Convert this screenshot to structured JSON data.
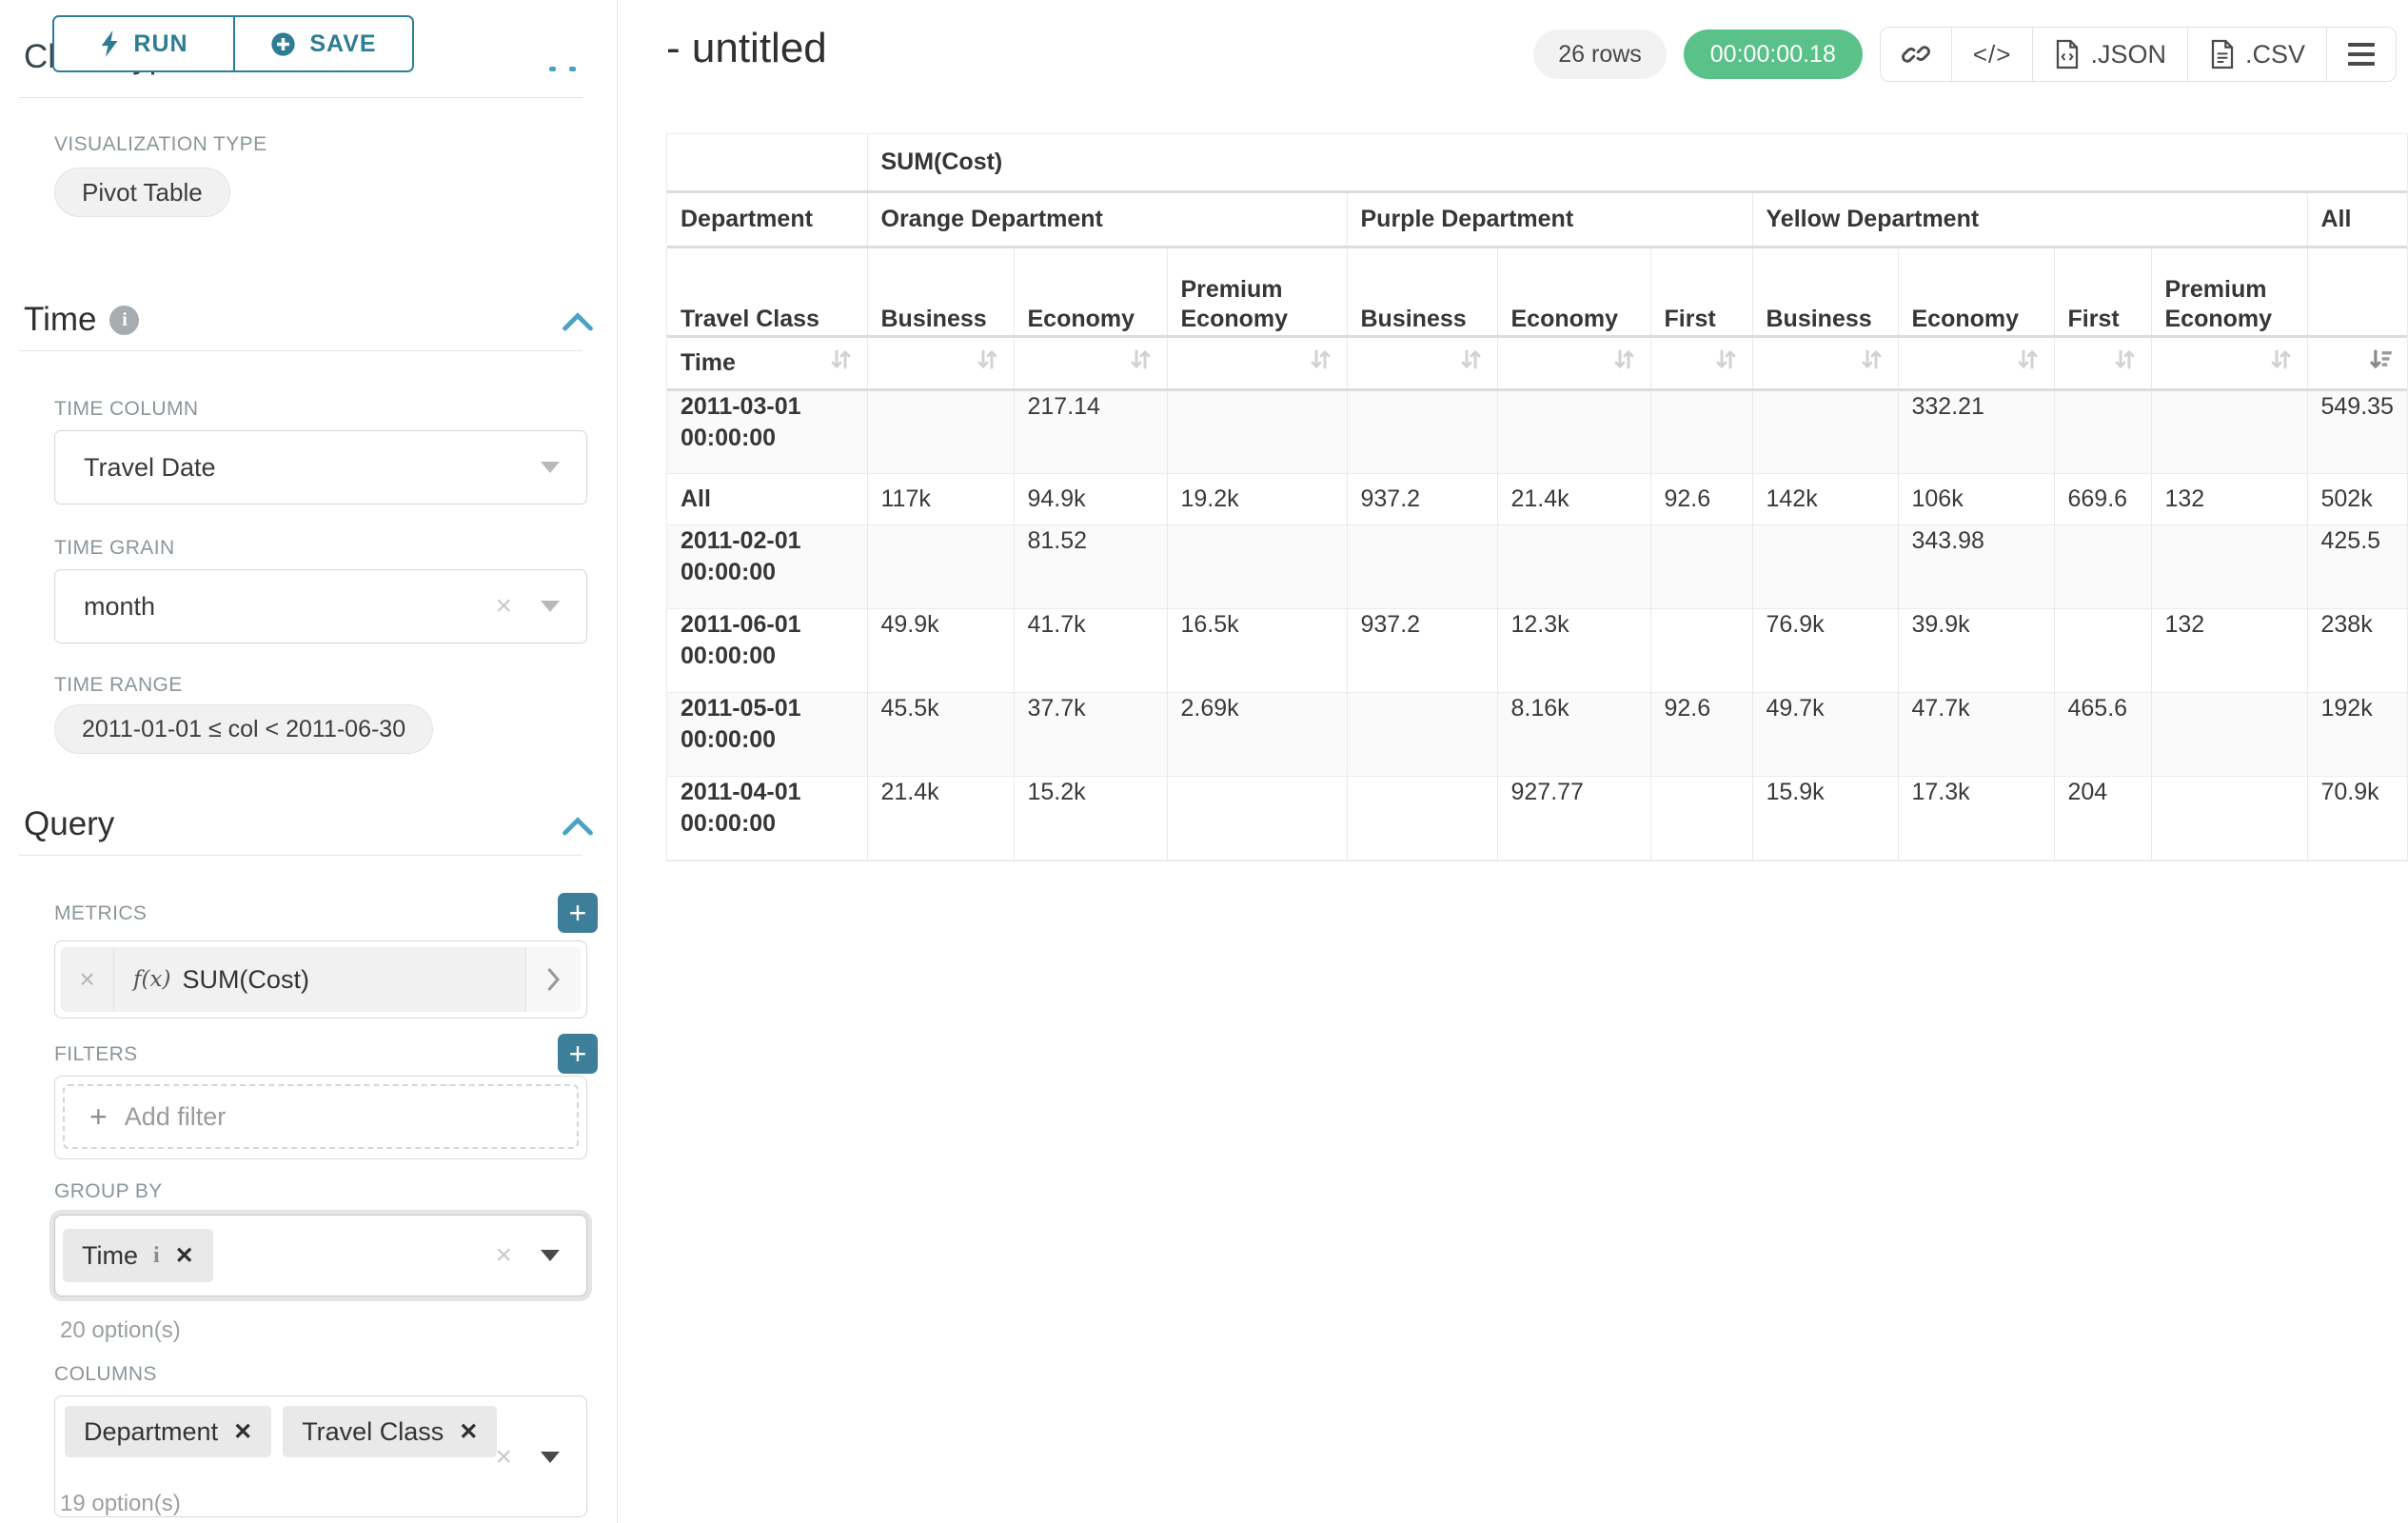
{
  "colors": {
    "accent_teal": "#2e7d95",
    "collapse_blue": "#4aa3c4",
    "plus_button_teal": "#3d7f99",
    "success_green": "#5ac189"
  },
  "sidebar": {
    "chart_type_title": "Chart Type",
    "run_label": "RUN",
    "save_label": "SAVE",
    "viz": {
      "label": "VISUALIZATION TYPE",
      "value": "Pivot Table"
    },
    "time": {
      "title": "Time",
      "column_label": "TIME COLUMN",
      "column_value": "Travel Date",
      "grain_label": "TIME GRAIN",
      "grain_value": "month",
      "range_label": "TIME RANGE",
      "range_value": "2011-01-01 ≤ col < 2011-06-30"
    },
    "query": {
      "title": "Query",
      "metrics": {
        "label": "METRICS",
        "fx": "f(x)",
        "value": "SUM(Cost)"
      },
      "filters": {
        "label": "FILTERS",
        "placeholder": "Add filter"
      },
      "group_by": {
        "label": "GROUP BY",
        "tags": [
          "Time"
        ],
        "hint": "20 option(s)"
      },
      "columns": {
        "label": "COLUMNS",
        "tags": [
          "Department",
          "Travel Class"
        ],
        "hint": "19 option(s)"
      }
    }
  },
  "header": {
    "title": "- untitled",
    "rows_badge": "26 rows",
    "timer": "00:00:00.18",
    "json_label": ".JSON",
    "csv_label": ".CSV"
  },
  "chart_data": {
    "type": "table",
    "pivot_table": {
      "metric_header": "SUM(Cost)",
      "corner_label": "Department",
      "row_header_label": "Travel Class",
      "time_label": "Time",
      "col_groups": [
        {
          "label": "Orange Department",
          "cols": [
            "Business",
            "Economy",
            "Premium Economy"
          ]
        },
        {
          "label": "Purple Department",
          "cols": [
            "Business",
            "Economy",
            "First"
          ]
        },
        {
          "label": "Yellow Department",
          "cols": [
            "Business",
            "Economy",
            "First",
            "Premium Economy"
          ]
        },
        {
          "label": "All",
          "cols": [
            ""
          ]
        }
      ],
      "sorted_by": "All",
      "sort_direction": "desc",
      "rows": [
        {
          "label": "2011-03-01 00:00:00",
          "values": [
            "",
            "217.14",
            "",
            "",
            "",
            "",
            "",
            "332.21",
            "",
            "",
            "549.35"
          ]
        },
        {
          "label": "All",
          "values": [
            "117k",
            "94.9k",
            "19.2k",
            "937.2",
            "21.4k",
            "92.6",
            "142k",
            "106k",
            "669.6",
            "132",
            "502k"
          ]
        },
        {
          "label": "2011-02-01 00:00:00",
          "values": [
            "",
            "81.52",
            "",
            "",
            "",
            "",
            "",
            "343.98",
            "",
            "",
            "425.5"
          ]
        },
        {
          "label": "2011-06-01 00:00:00",
          "values": [
            "49.9k",
            "41.7k",
            "16.5k",
            "937.2",
            "12.3k",
            "",
            "76.9k",
            "39.9k",
            "",
            "132",
            "238k"
          ]
        },
        {
          "label": "2011-05-01 00:00:00",
          "values": [
            "45.5k",
            "37.7k",
            "2.69k",
            "",
            "8.16k",
            "92.6",
            "49.7k",
            "47.7k",
            "465.6",
            "",
            "192k"
          ]
        },
        {
          "label": "2011-04-01 00:00:00",
          "values": [
            "21.4k",
            "15.2k",
            "",
            "",
            "927.77",
            "",
            "15.9k",
            "17.3k",
            "204",
            "",
            "70.9k"
          ]
        }
      ]
    }
  }
}
